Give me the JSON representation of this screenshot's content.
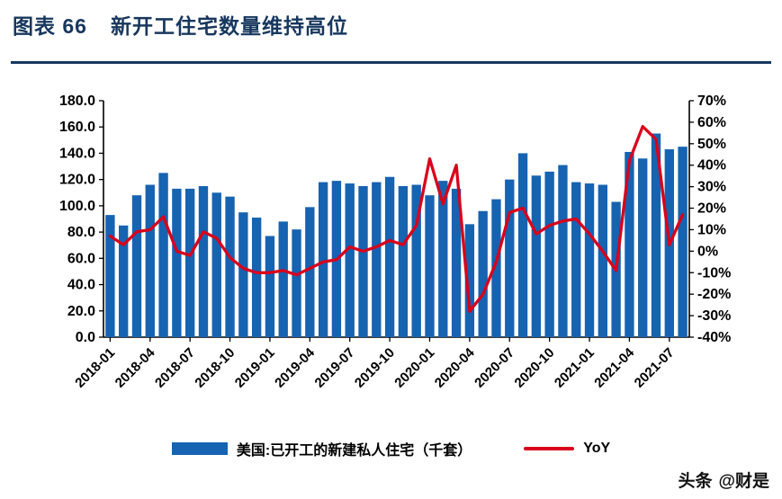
{
  "header": {
    "prefix": "图表 66",
    "title": "新开工住宅数量维持高位"
  },
  "watermark": {
    "badge": "头条",
    "handle": "@财是"
  },
  "chart_data": {
    "type": "bar+line",
    "title": "新开工住宅数量维持高位",
    "legend_position": "bottom",
    "grid": false,
    "categories": [
      "2018-01",
      "2018-02",
      "2018-03",
      "2018-04",
      "2018-05",
      "2018-06",
      "2018-07",
      "2018-08",
      "2018-09",
      "2018-10",
      "2018-11",
      "2018-12",
      "2019-01",
      "2019-02",
      "2019-03",
      "2019-04",
      "2019-05",
      "2019-06",
      "2019-07",
      "2019-08",
      "2019-09",
      "2019-10",
      "2019-11",
      "2019-12",
      "2020-01",
      "2020-02",
      "2020-03",
      "2020-04",
      "2020-05",
      "2020-06",
      "2020-07",
      "2020-08",
      "2020-09",
      "2020-10",
      "2020-11",
      "2020-12",
      "2021-01",
      "2021-02",
      "2021-03",
      "2021-04",
      "2021-05",
      "2021-06",
      "2021-07",
      "2021-08"
    ],
    "x_tick_labels": [
      "2018-01",
      "2018-04",
      "2018-07",
      "2018-10",
      "2019-01",
      "2019-04",
      "2019-07",
      "2019-10",
      "2020-01",
      "2020-04",
      "2020-07",
      "2020-10",
      "2021-01",
      "2021-04",
      "2021-07"
    ],
    "left_axis": {
      "min": 0,
      "max": 180,
      "step": 20,
      "format": "one-decimal"
    },
    "right_axis": {
      "min": -40,
      "max": 70,
      "step": 10,
      "format": "percent"
    },
    "series": [
      {
        "name": "美国:已开工的新建私人住宅（千套）",
        "type": "bar",
        "axis": "left",
        "color": "#1663B2",
        "values": [
          93,
          85,
          108,
          116,
          125,
          113,
          113,
          115,
          110,
          107,
          95,
          91,
          77,
          88,
          82,
          99,
          118,
          119,
          117,
          115,
          118,
          122,
          115,
          116,
          108,
          119,
          113,
          86,
          96,
          105,
          120,
          140,
          123,
          126,
          131,
          118,
          117,
          116,
          103,
          141,
          136,
          155,
          143,
          145
        ]
      },
      {
        "name": "YoY",
        "type": "line",
        "axis": "right",
        "color": "#D9001B",
        "values": [
          7,
          3,
          9,
          10,
          16,
          0,
          -2,
          9,
          6,
          -3,
          -8,
          -10,
          -10,
          -9,
          -11,
          -8,
          -5,
          -4,
          2,
          0,
          2,
          5,
          3,
          12,
          43,
          22,
          40,
          -28,
          -20,
          -5,
          18,
          20,
          8,
          12,
          14,
          15,
          8,
          0,
          -9,
          42,
          58,
          52,
          3,
          17
        ]
      }
    ]
  }
}
